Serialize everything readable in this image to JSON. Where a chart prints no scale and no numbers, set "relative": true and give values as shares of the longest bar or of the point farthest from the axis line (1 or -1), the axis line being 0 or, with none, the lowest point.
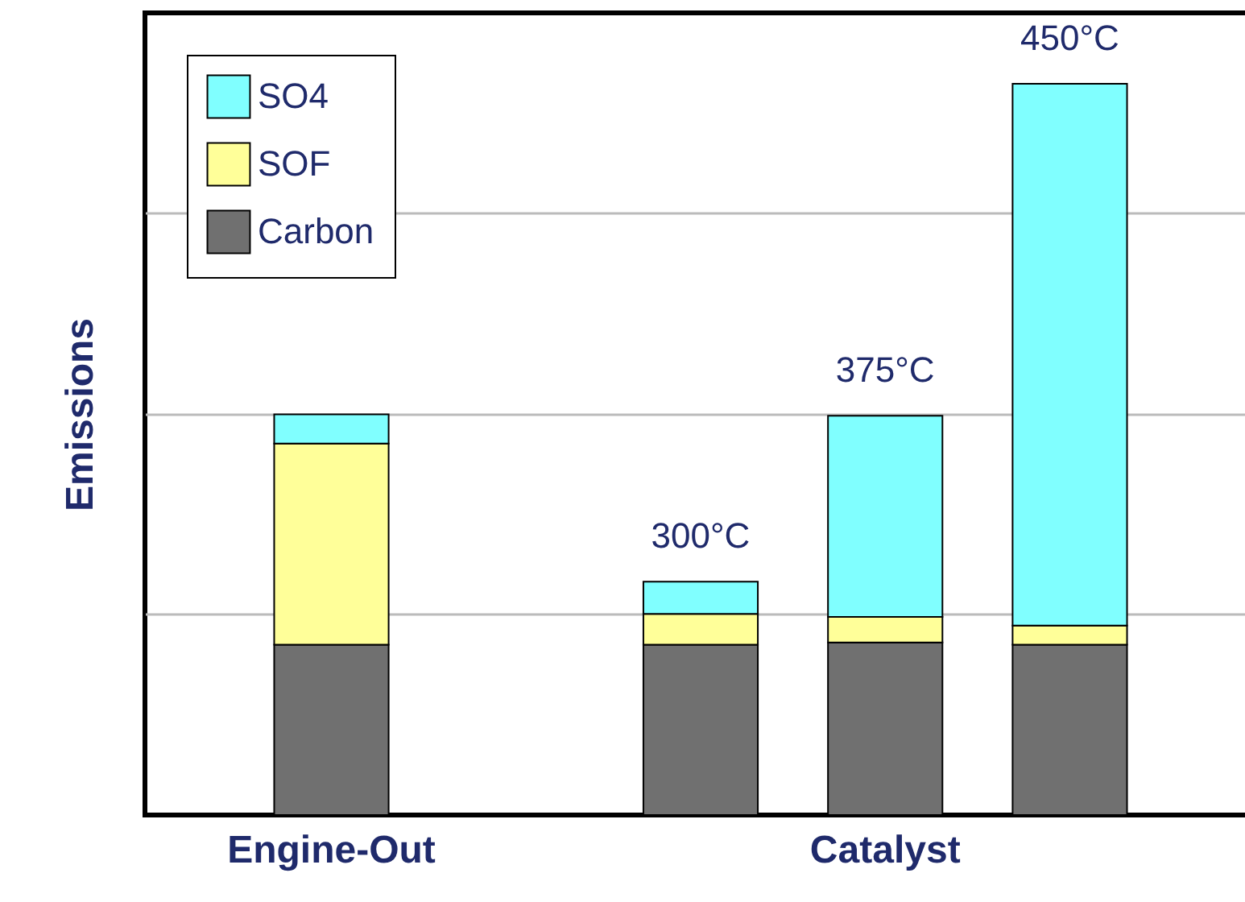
{
  "chart_data": {
    "type": "bar",
    "stacked": true,
    "relative": true,
    "ylabel": "Emissions",
    "categories": [
      "Engine-Out",
      null,
      null,
      "Catalyst",
      null
    ],
    "series": [
      {
        "name": "Carbon",
        "color": "#707070",
        "values": [
          0.233,
          null,
          0.233,
          0.236,
          0.233
        ]
      },
      {
        "name": "SOF",
        "color": "#ffff99",
        "values": [
          0.275,
          null,
          0.042,
          0.035,
          0.026
        ]
      },
      {
        "name": "SO4",
        "color": "#80ffff",
        "values": [
          0.04,
          null,
          0.044,
          0.275,
          0.741
        ]
      }
    ],
    "annotations": [
      {
        "text": "300°C",
        "y": 0.319
      },
      {
        "text": "375°C",
        "y": 0.546
      },
      {
        "text": "450°C",
        "y": 1
      }
    ],
    "grid": "y",
    "legend": "top left"
  }
}
